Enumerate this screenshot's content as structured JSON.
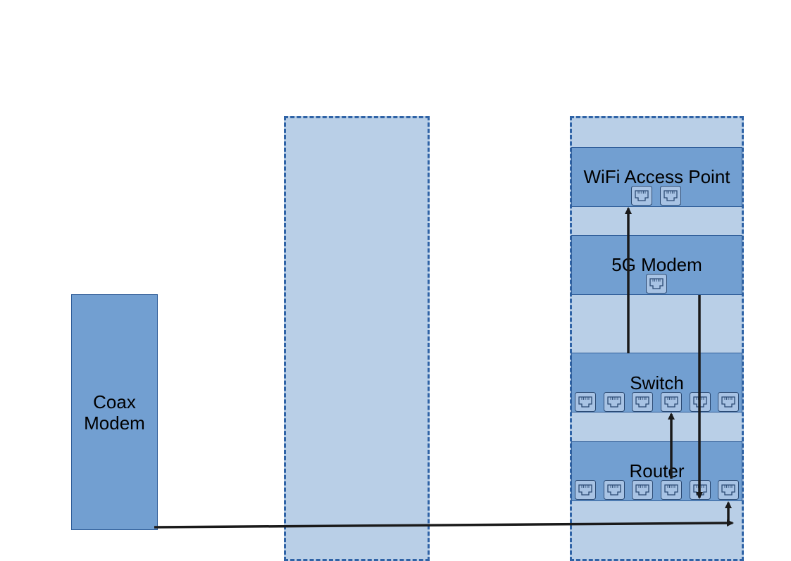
{
  "colors": {
    "zone_fill": "#b9cfe7",
    "zone_border": "#2f63a6",
    "device_fill": "#729fd1",
    "device_border": "#2f5d99",
    "wire": "#1a1a1a"
  },
  "devices": {
    "coax_modem": {
      "line1": "Coax",
      "line2": "Modem"
    },
    "wifi_access_point": {
      "label": "WiFi Access Point",
      "ports": 2
    },
    "fiveg_modem": {
      "label": "5G Modem",
      "ports": 1
    },
    "switch": {
      "label": "Switch",
      "ports": 6
    },
    "router": {
      "label": "Router",
      "ports": 6
    }
  },
  "icons": {
    "port": "ethernet-port-icon"
  }
}
